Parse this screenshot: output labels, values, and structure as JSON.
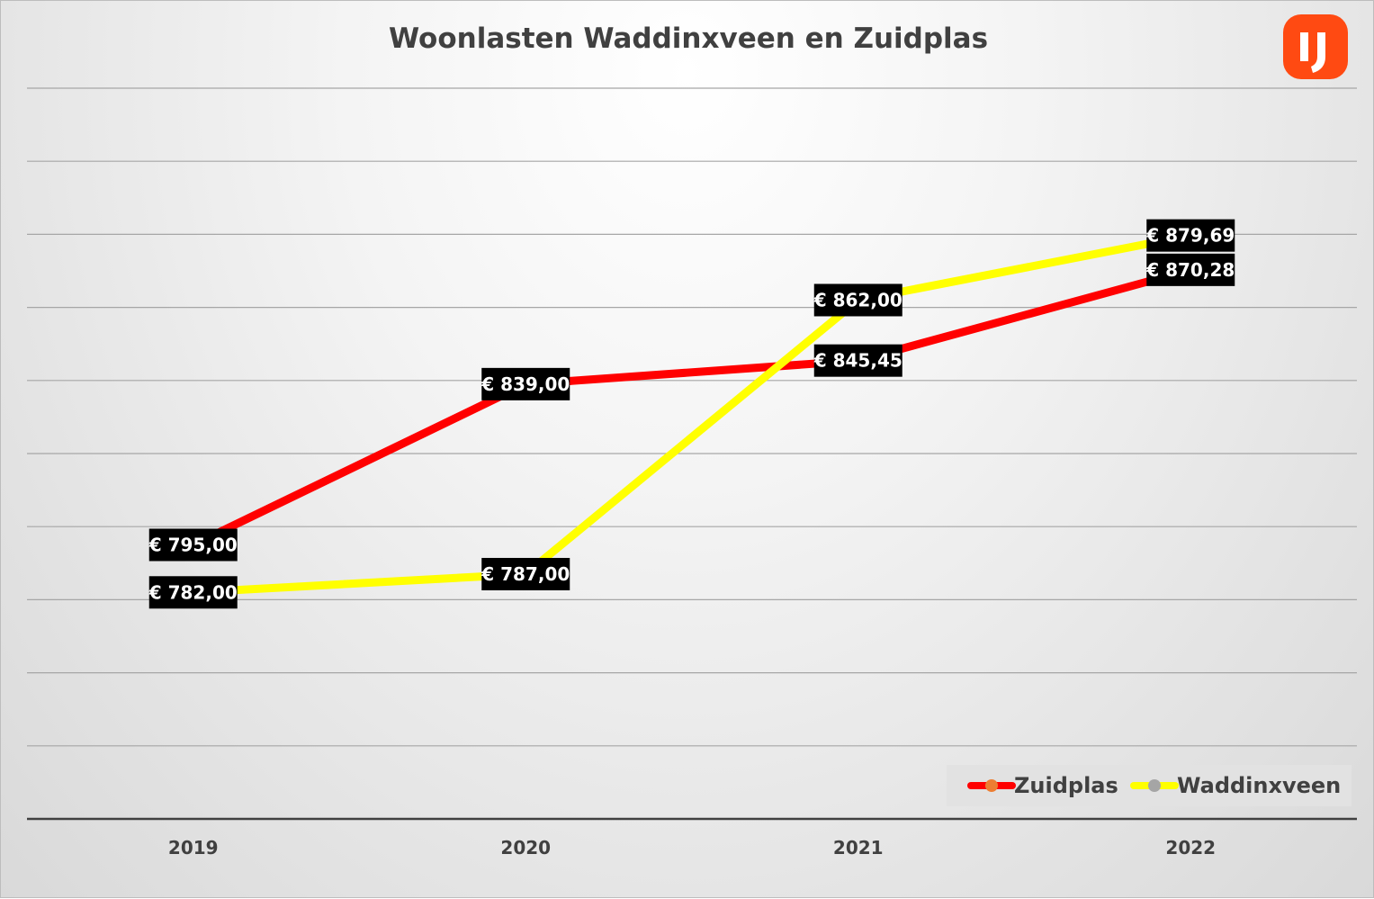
{
  "logo": {
    "color": "#ff4a12"
  },
  "chart_data": {
    "type": "line",
    "title": "Woonlasten Waddinxveen en Zuidplas",
    "xlabel": "",
    "ylabel": "",
    "categories": [
      "2019",
      "2020",
      "2021",
      "2022"
    ],
    "ylim": [
      720,
      920
    ],
    "grid": true,
    "legend_position": "bottom-right",
    "series": [
      {
        "name": "Zuidplas",
        "color": "#ff0000",
        "marker_color": "#ed7d31",
        "values": [
          795.0,
          839.0,
          845.45,
          870.28
        ],
        "labels": [
          "€ 795,00",
          "€ 839,00",
          "€ 845,45",
          "€ 870,28"
        ]
      },
      {
        "name": "Waddinxveen",
        "color": "#ffff00",
        "marker_color": "#a5a5a5",
        "values": [
          782.0,
          787.0,
          862.0,
          879.69
        ],
        "labels": [
          "€ 782,00",
          "€ 787,00",
          "€ 862,00",
          "€ 879,69"
        ]
      }
    ]
  }
}
